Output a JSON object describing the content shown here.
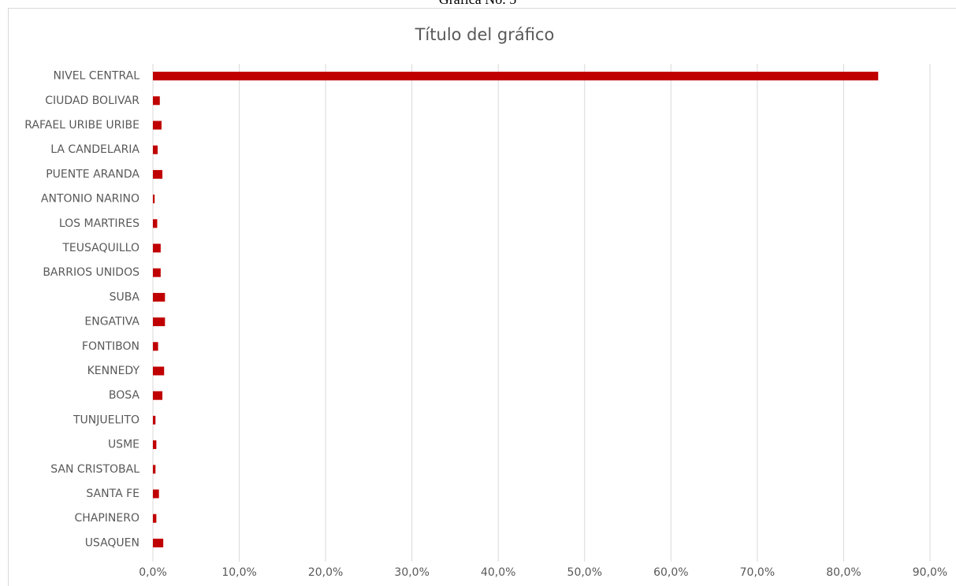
{
  "caption": "Gráfica No. 5",
  "chart_data": {
    "type": "barh",
    "title": "Título del gráfico",
    "categories": [
      "NIVEL CENTRAL",
      "CIUDAD BOLIVAR",
      "RAFAEL URIBE URIBE",
      "LA CANDELARIA",
      "PUENTE ARANDA",
      "ANTONIO NARINO",
      "LOS MARTIRES",
      "TEUSAQUILLO",
      "BARRIOS UNIDOS",
      "SUBA",
      "ENGATIVA",
      "FONTIBON",
      "KENNEDY",
      "BOSA",
      "TUNJUELITO",
      "USME",
      "SAN CRISTOBAL",
      "SANTA FE",
      "CHAPINERO",
      "USAQUEN"
    ],
    "values": [
      84.0,
      0.8,
      1.0,
      0.55,
      1.1,
      0.2,
      0.5,
      0.9,
      0.9,
      1.4,
      1.4,
      0.6,
      1.3,
      1.1,
      0.3,
      0.4,
      0.3,
      0.7,
      0.4,
      1.2
    ],
    "color": "#c00000",
    "xlim": [
      0,
      90
    ],
    "xticks": [
      {
        "value": 0,
        "label": "0,0%"
      },
      {
        "value": 10,
        "label": "10,0%"
      },
      {
        "value": 20,
        "label": "20,0%"
      },
      {
        "value": 30,
        "label": "30,0%"
      },
      {
        "value": 40,
        "label": "40,0%"
      },
      {
        "value": 50,
        "label": "50,0%"
      },
      {
        "value": 60,
        "label": "60,0%"
      },
      {
        "value": 70,
        "label": "70,0%"
      },
      {
        "value": 80,
        "label": "80,0%"
      },
      {
        "value": 90,
        "label": "90,0%"
      }
    ],
    "grid": true
  }
}
